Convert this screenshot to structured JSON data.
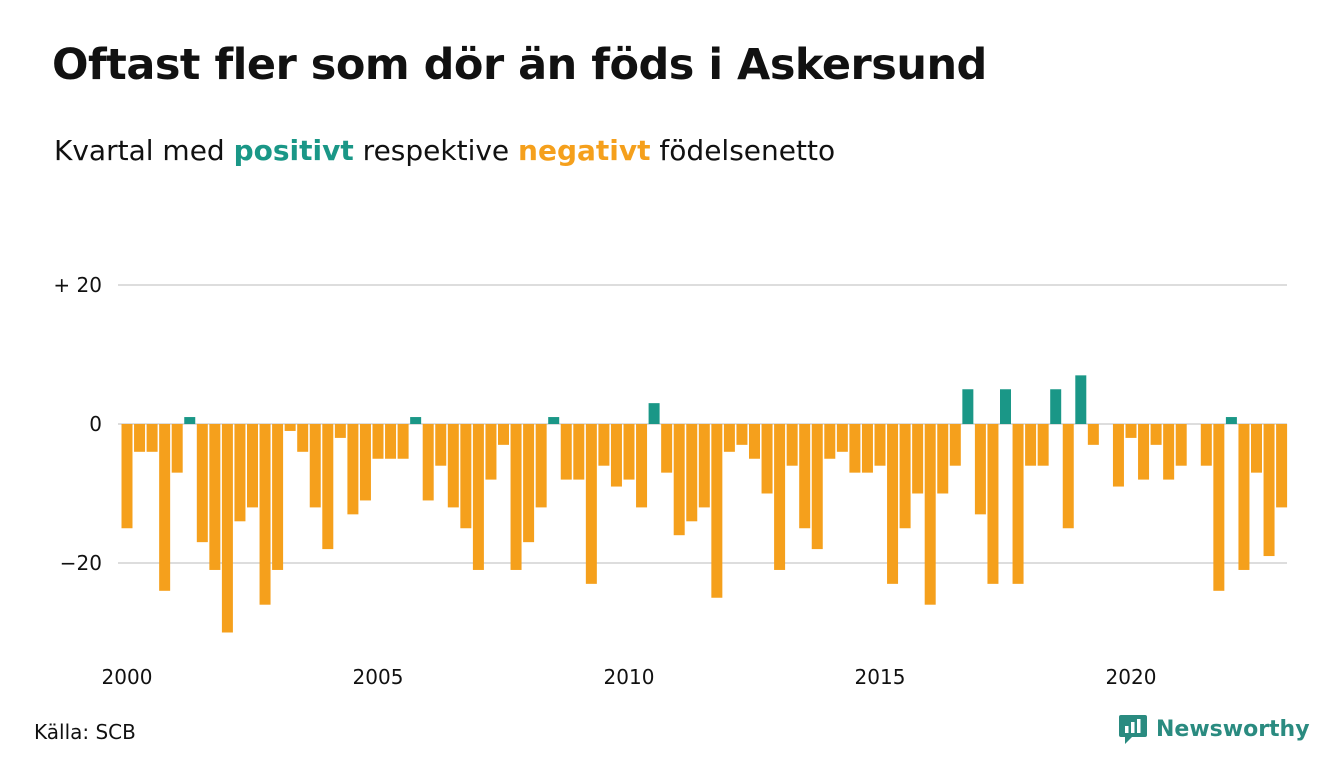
{
  "title": "Oftast fler som dör än föds i Askersund",
  "subtitle": {
    "prefix": "Kvartal med ",
    "positive_word": "positivt",
    "middle": " respektive ",
    "negative_word": "negativt",
    "suffix": " födelsenetto"
  },
  "source": "Källa: SCB",
  "brand": "Newsworthy",
  "colors": {
    "positive": "#1a9787",
    "negative": "#f5a01c",
    "grid": "#dddddd",
    "brand": "#2a8b80"
  },
  "chart_data": {
    "type": "bar",
    "start": "2000 Q1",
    "frequency": "quarterly",
    "values": [
      -15,
      -4,
      -4,
      -24,
      -7,
      1,
      -17,
      -21,
      -30,
      -14,
      -12,
      -26,
      -21,
      -1,
      -4,
      -12,
      -18,
      -2,
      -13,
      -11,
      -5,
      -5,
      -5,
      1,
      -11,
      -6,
      -12,
      -15,
      -21,
      -8,
      -3,
      -21,
      -17,
      -12,
      1,
      -8,
      -8,
      -23,
      -6,
      -9,
      -8,
      -12,
      3,
      -7,
      -16,
      -14,
      -12,
      -25,
      -4,
      -3,
      -5,
      -10,
      -21,
      -6,
      -15,
      -18,
      -5,
      -4,
      -7,
      -7,
      -6,
      -23,
      -15,
      -10,
      -26,
      -10,
      -6,
      5,
      -13,
      -23,
      5,
      -23,
      -6,
      -6,
      5,
      -15,
      7,
      -3,
      0,
      -9,
      -2,
      -8,
      -3,
      -8,
      -6,
      0,
      -6,
      -24,
      1,
      -21,
      -7,
      -19,
      -12
    ],
    "yticks": [
      20,
      0,
      -20
    ],
    "ytick_labels": [
      "+ 20",
      "0",
      "−20"
    ],
    "xticks": [
      2000,
      2005,
      2010,
      2015,
      2020
    ],
    "ylim": [
      -32,
      22
    ],
    "grid": true
  }
}
